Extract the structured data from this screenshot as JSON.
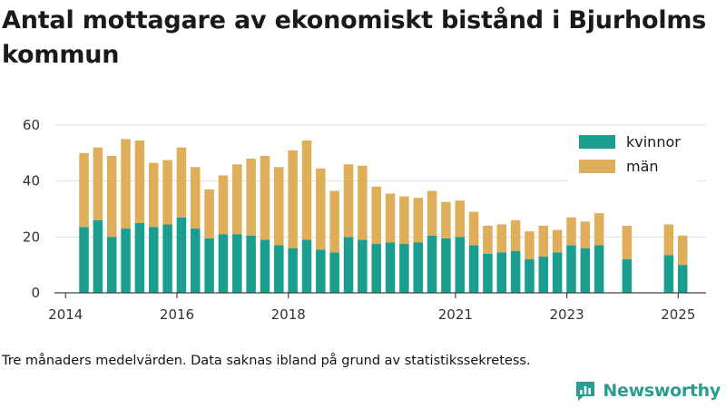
{
  "title": "Antal mottagare av ekonomiskt bistånd i Bjurholms kommun",
  "note": "Tre månaders medelvärden. Data saknas ibland på grund av statistikssekretess.",
  "brand": {
    "name": "Newsworthy",
    "color": "#2a9d8f"
  },
  "chart_data": {
    "type": "bar",
    "stacked": true,
    "x_unit": "year",
    "x": [
      2014.33,
      2014.58,
      2014.83,
      2015.08,
      2015.33,
      2015.58,
      2015.83,
      2016.08,
      2016.33,
      2016.58,
      2016.83,
      2017.08,
      2017.33,
      2017.58,
      2017.83,
      2018.08,
      2018.33,
      2018.58,
      2018.83,
      2019.08,
      2019.33,
      2019.58,
      2019.83,
      2020.08,
      2020.33,
      2020.58,
      2020.83,
      2021.08,
      2021.33,
      2021.58,
      2021.83,
      2022.08,
      2022.33,
      2022.58,
      2022.83,
      2023.08,
      2023.33,
      2023.58,
      2024.08,
      2024.83,
      2025.08
    ],
    "series": [
      {
        "name": "kvinnor",
        "color": "#1a9e8f",
        "values": [
          23.5,
          26,
          20,
          23,
          25,
          23.5,
          24.5,
          27,
          23,
          19.5,
          21,
          21,
          20.5,
          19,
          17,
          16,
          19,
          15.5,
          14.5,
          20,
          19,
          17.5,
          18,
          17.5,
          18,
          20.5,
          19.5,
          20,
          17,
          14,
          14.5,
          15,
          12,
          13,
          14.5,
          17,
          16,
          17,
          12,
          13.5,
          10
        ]
      },
      {
        "name": "män",
        "color": "#deae5a",
        "values": [
          26.5,
          26,
          29,
          32,
          29.5,
          23,
          23,
          25,
          22,
          17.5,
          21,
          25,
          27.5,
          30,
          28,
          35,
          35.5,
          29,
          22,
          26,
          26.5,
          20.5,
          17.5,
          17,
          16,
          16,
          13,
          13,
          12,
          10,
          10,
          11,
          10,
          11,
          8,
          10,
          9.5,
          11.5,
          12,
          11,
          10.5
        ]
      }
    ],
    "x_ticks": [
      "2014",
      "2016",
      "2018",
      "2021",
      "2023",
      "2025"
    ],
    "y_ticks": [
      "0",
      "20",
      "40",
      "60"
    ],
    "xlim": [
      2013.8,
      2025.5
    ],
    "ylim": [
      0,
      60
    ],
    "grid": true,
    "legend": "top-right"
  }
}
